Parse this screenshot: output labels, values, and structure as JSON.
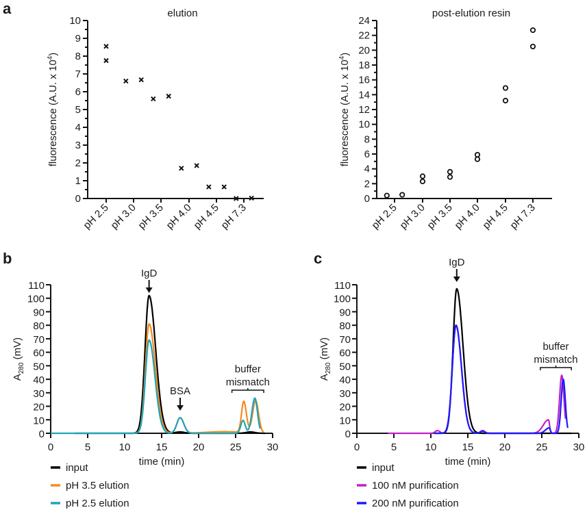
{
  "panels": {
    "a": "a",
    "b": "b",
    "c": "c"
  },
  "chart_data": [
    {
      "id": "a-left",
      "type": "scatter",
      "title": "elution",
      "xlabel": "",
      "ylabel": "fluorescence (A.U. x 10",
      "ylabel_sup": "4",
      "ylabel_tail": ")",
      "categories": [
        "pH 2.5",
        "pH 3.0",
        "pH 3.5",
        "pH 4.0",
        "pH 4.5",
        "pH 7.3"
      ],
      "ylim": [
        0,
        10
      ],
      "yticks": [
        0,
        1,
        2,
        3,
        4,
        5,
        6,
        7,
        8,
        9,
        10
      ],
      "marker": "x",
      "points": [
        {
          "cat": 0,
          "offset": 0,
          "y": 8.55
        },
        {
          "cat": 0,
          "offset": 0,
          "y": 7.75
        },
        {
          "cat": 1,
          "offset": -0.35,
          "y": 6.6
        },
        {
          "cat": 1,
          "offset": 0.35,
          "y": 6.67
        },
        {
          "cat": 2,
          "offset": -0.35,
          "y": 5.6
        },
        {
          "cat": 2,
          "offset": 0.35,
          "y": 5.75
        },
        {
          "cat": 3,
          "offset": -0.35,
          "y": 1.7
        },
        {
          "cat": 3,
          "offset": 0.35,
          "y": 1.85
        },
        {
          "cat": 4,
          "offset": -0.35,
          "y": 0.65
        },
        {
          "cat": 4,
          "offset": 0.35,
          "y": 0.65
        },
        {
          "cat": 5,
          "offset": -0.35,
          "y": 0.0
        },
        {
          "cat": 5,
          "offset": 0.35,
          "y": 0.02
        }
      ]
    },
    {
      "id": "a-right",
      "type": "scatter",
      "title": "post-elution resin",
      "xlabel": "",
      "ylabel": "fluorescence (A.U. x 10",
      "ylabel_sup": "4",
      "ylabel_tail": ")",
      "categories": [
        "pH 2.5",
        "pH 3.0",
        "pH 3.5",
        "pH 4.0",
        "pH 4.5",
        "pH 7.3"
      ],
      "ylim": [
        0,
        24
      ],
      "yticks": [
        0,
        2,
        4,
        6,
        8,
        10,
        12,
        14,
        16,
        18,
        20,
        22,
        24
      ],
      "marker": "o",
      "points": [
        {
          "cat": 0,
          "offset": -0.35,
          "y": 0.4
        },
        {
          "cat": 0,
          "offset": 0.35,
          "y": 0.5
        },
        {
          "cat": 1,
          "offset": 0,
          "y": 3.0
        },
        {
          "cat": 1,
          "offset": 0,
          "y": 2.3
        },
        {
          "cat": 2,
          "offset": 0,
          "y": 3.6
        },
        {
          "cat": 2,
          "offset": 0,
          "y": 2.9
        },
        {
          "cat": 3,
          "offset": 0,
          "y": 5.9
        },
        {
          "cat": 3,
          "offset": 0,
          "y": 5.3
        },
        {
          "cat": 4,
          "offset": 0,
          "y": 14.9
        },
        {
          "cat": 4,
          "offset": 0,
          "y": 13.2
        },
        {
          "cat": 5,
          "offset": 0,
          "y": 22.7
        },
        {
          "cat": 5,
          "offset": 0,
          "y": 20.5
        }
      ]
    },
    {
      "id": "b",
      "type": "line",
      "title": "",
      "xlabel": "time (min)",
      "ylabel": "A",
      "ylabel_sub": "280",
      "ylabel_tail": " (mV)",
      "xlim": [
        0,
        30
      ],
      "ylim": [
        0,
        110
      ],
      "xticks": [
        0,
        5,
        10,
        15,
        20,
        25,
        30
      ],
      "yticks": [
        0,
        10,
        20,
        30,
        40,
        50,
        60,
        70,
        80,
        90,
        100,
        110
      ],
      "annotations": [
        {
          "text": "IgD",
          "type": "arrow",
          "x": 13.3
        },
        {
          "text": "BSA",
          "type": "arrow",
          "x": 17.5
        },
        {
          "text": "buffer",
          "text2": "mismatch",
          "type": "bracket",
          "x0": 24.5,
          "x1": 28.8
        }
      ],
      "series": [
        {
          "name": "input",
          "color": "#000000",
          "peaks": [
            [
              13.3,
              102,
              0.55,
              0.9
            ],
            [
              17.5,
              1,
              0.6,
              0.6
            ],
            [
              27,
              1,
              0.6,
              0.6
            ]
          ],
          "range": [
            3.3,
            29
          ]
        },
        {
          "name": "pH 3.5 elution",
          "color": "#f58a1f",
          "peaks": [
            [
              13.3,
              81,
              0.5,
              0.85
            ],
            [
              17.5,
              11.5,
              0.45,
              0.5
            ],
            [
              26.1,
              23,
              0.3,
              0.35
            ],
            [
              27.7,
              24,
              0.4,
              0.4
            ],
            [
              23.5,
              1.2,
              2.5,
              2.5
            ]
          ],
          "range": [
            10.6,
            28.8
          ]
        },
        {
          "name": "pH 2.5 elution",
          "color": "#1fa3b8",
          "peaks": [
            [
              13.3,
              69,
              0.5,
              0.8
            ],
            [
              17.5,
              11.5,
              0.45,
              0.5
            ],
            [
              26.0,
              9.5,
              0.3,
              0.3
            ],
            [
              27.6,
              26,
              0.4,
              0.35
            ]
          ],
          "range": [
            0,
            28.3
          ]
        }
      ]
    },
    {
      "id": "c",
      "type": "line",
      "title": "",
      "xlabel": "time (min)",
      "ylabel": "A",
      "ylabel_sub": "280",
      "ylabel_tail": " (mV)",
      "xlim": [
        0,
        30
      ],
      "ylim": [
        0,
        110
      ],
      "xticks": [
        0,
        5,
        10,
        15,
        20,
        25,
        30
      ],
      "yticks": [
        0,
        10,
        20,
        30,
        40,
        50,
        60,
        70,
        80,
        90,
        100,
        110
      ],
      "annotations": [
        {
          "text": "IgD",
          "type": "arrow",
          "x": 13.5
        },
        {
          "text": "buffer",
          "text2": "mismatch",
          "type": "bracket",
          "x0": 24.8,
          "x1": 29
        }
      ],
      "series": [
        {
          "name": "input",
          "color": "#000000",
          "peaks": [
            [
              13.5,
              107,
              0.5,
              0.85
            ]
          ],
          "range": [
            10.5,
            29
          ]
        },
        {
          "name": "100 nM purification",
          "color": "#c020c8",
          "peaks": [
            [
              13.4,
              80,
              0.5,
              0.75
            ],
            [
              10.9,
              2,
              0.3,
              0.3
            ],
            [
              17.0,
              2,
              0.3,
              0.3
            ],
            [
              25.9,
              10,
              0.7,
              0.15
            ],
            [
              27.7,
              43,
              0.3,
              0.3
            ]
          ],
          "range": [
            4.2,
            28.2
          ]
        },
        {
          "name": "200 nM purification",
          "color": "#1a1aff",
          "peaks": [
            [
              13.4,
              80,
              0.5,
              0.75
            ],
            [
              17.0,
              1.5,
              0.3,
              0.3
            ],
            [
              26.0,
              4,
              0.5,
              0.15
            ],
            [
              27.9,
              40,
              0.28,
              0.28
            ]
          ],
          "range": [
            10.5,
            28.5
          ]
        }
      ]
    }
  ]
}
